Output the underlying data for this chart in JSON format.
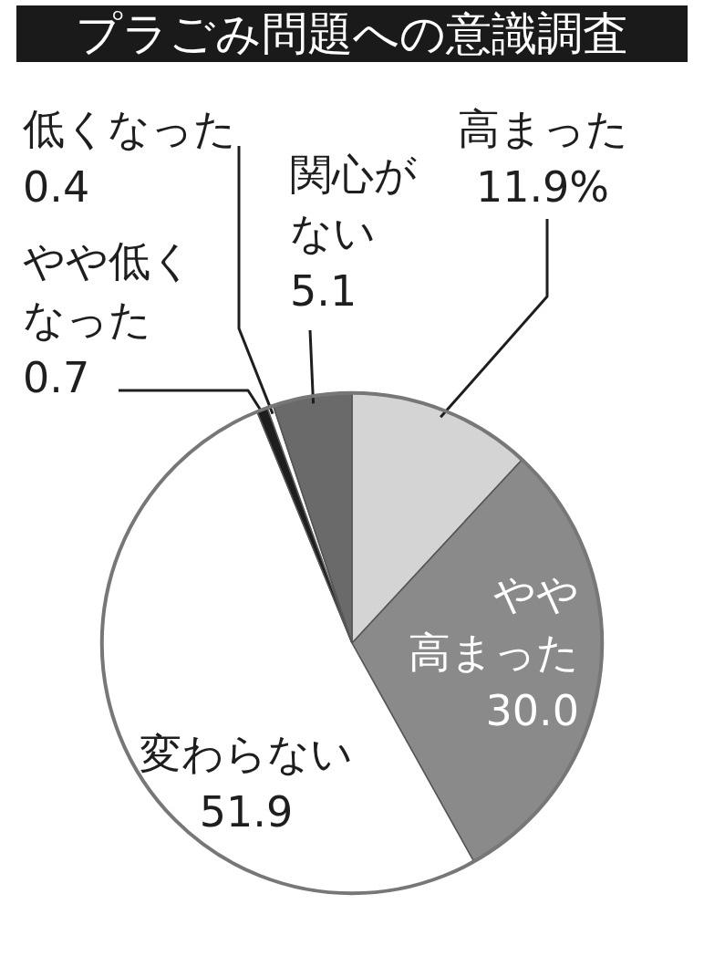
{
  "chart_data": {
    "type": "pie",
    "title": "プラごみ問題への意識調査",
    "categories": [
      "高まった",
      "やや高まった",
      "変わらない",
      "やや低くなった",
      "低くなった",
      "関心がない"
    ],
    "values": [
      11.9,
      30.0,
      51.9,
      0.7,
      0.4,
      5.1
    ],
    "value_labels": [
      "11.9%",
      "30.0",
      "51.9",
      "0.7",
      "0.4",
      "5.1"
    ],
    "colors": [
      "#d4d4d4",
      "#8a8a8a",
      "#ffffff",
      "#1e1e1e",
      "#ffffff",
      "#6a6a6a"
    ],
    "legend": false
  }
}
